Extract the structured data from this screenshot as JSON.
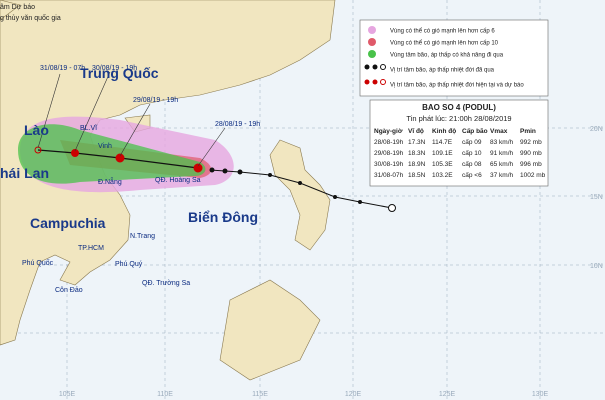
{
  "header": {
    "org_line1": "âm Dự báo",
    "org_line2": "g thủy văn quốc gia"
  },
  "legend": [
    "Vùng có thể có gió mạnh lên hơn cấp 6",
    "Vùng có thể có gió mạnh lên hơn cấp 10",
    "Vùng tâm bão, áp thấp có khả năng đi qua",
    "Vị trí tâm bão, áp thấp nhiệt đới đã qua",
    "Vị trí tâm bão, áp thấp nhiệt đới hiện tại và dự báo"
  ],
  "table": {
    "title": "BAO SO 4  (PODUL)",
    "issued": "Tin phát lúc: 21:00h 28/08/2019",
    "headers": [
      "Ngày-giờ",
      "Vĩ độ",
      "Kinh độ",
      "Cấp bão",
      "Vmax",
      "Pmin"
    ],
    "rows": [
      [
        "28/08-19h",
        "17.3N",
        "114.7E",
        "cấp 09",
        "83 km/h",
        "992 mb"
      ],
      [
        "29/08-19h",
        "18.3N",
        "109.1E",
        "cấp 10",
        "91 km/h",
        "990 mb"
      ],
      [
        "30/08-19h",
        "18.9N",
        "105.3E",
        "cấp 08",
        "65 km/h",
        "996 mb"
      ],
      [
        "31/08-07h",
        "18.5N",
        "103.2E",
        "cấp <6",
        "37 km/h",
        "1002 mb"
      ]
    ]
  },
  "map": {
    "regions": [
      "Trung Quốc",
      "Lào",
      "hái Lan",
      "Campuchia",
      "Biển Đông"
    ],
    "track_labels": [
      "31/08/19 - 07h",
      "30/08/19 - 19h",
      "29/08/19 - 19h",
      "28/08/19 - 19h"
    ],
    "places": [
      "BL.Vĩ",
      "Vinh",
      "Đ.Nẵng",
      "QĐ. Hoàng Sa",
      "N.Trang",
      "TP.HCM",
      "Phú Quốc",
      "Côn Đảo",
      "Phú Quý",
      "QĐ. Trường Sa"
    ],
    "lon_labels": [
      "105E",
      "110E",
      "115E",
      "120E",
      "125E",
      "130E"
    ],
    "lat_labels": [
      "20N",
      "15N",
      "10N"
    ]
  }
}
